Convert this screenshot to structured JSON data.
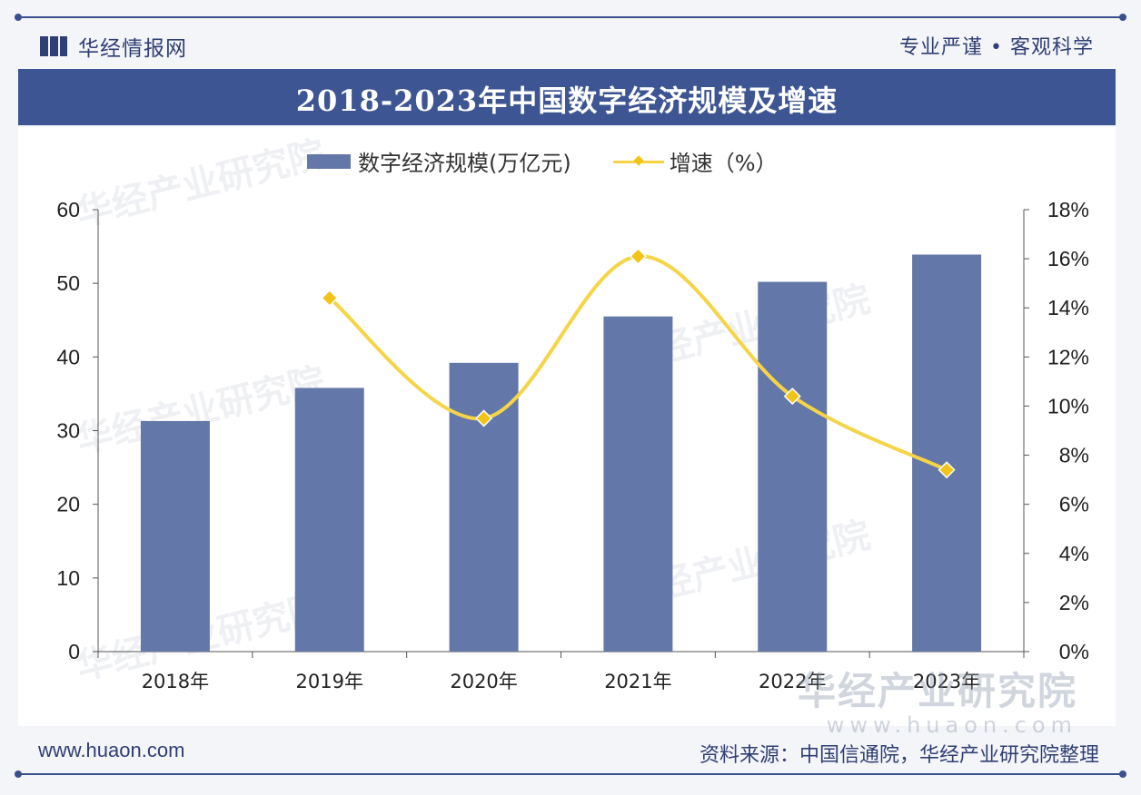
{
  "header": {
    "brand": "华经情报网",
    "motto": "专业严谨 • 客观科学",
    "title": "2018-2023年中国数字经济规模及增速"
  },
  "legend": {
    "bar": "数字经济规模(万亿元)",
    "line": "增速（%）"
  },
  "watermark": {
    "text": "华经产业研究院",
    "url": "www.huaon.com"
  },
  "footer": {
    "site": "www.huaon.com",
    "source": "资料来源：中国信通院，华经产业研究院整理"
  },
  "colors": {
    "bar": "#6378a8",
    "line": "#f5d547",
    "marker": "#f2c318",
    "accent": "#3d5592"
  },
  "chart_data": {
    "type": "bar",
    "title": "2018-2023年中国数字经济规模及增速",
    "categories": [
      "2018年",
      "2019年",
      "2020年",
      "2021年",
      "2022年",
      "2023年"
    ],
    "series": [
      {
        "name": "数字经济规模(万亿元)",
        "type": "bar",
        "axis": "left",
        "values": [
          31.3,
          35.8,
          39.2,
          45.5,
          50.2,
          53.9
        ]
      },
      {
        "name": "增速（%）",
        "type": "line",
        "axis": "right",
        "values": [
          null,
          14.4,
          9.5,
          16.1,
          10.4,
          7.4
        ]
      }
    ],
    "y_left": {
      "min": 0,
      "max": 60,
      "ticks": [
        "0",
        "10",
        "20",
        "30",
        "40",
        "50",
        "60"
      ]
    },
    "y_right": {
      "min": 0,
      "max": 18,
      "ticks": [
        "0%",
        "2%",
        "4%",
        "6%",
        "8%",
        "10%",
        "12%",
        "14%",
        "16%",
        "18%"
      ]
    },
    "grid": false,
    "legend_position": "top"
  }
}
